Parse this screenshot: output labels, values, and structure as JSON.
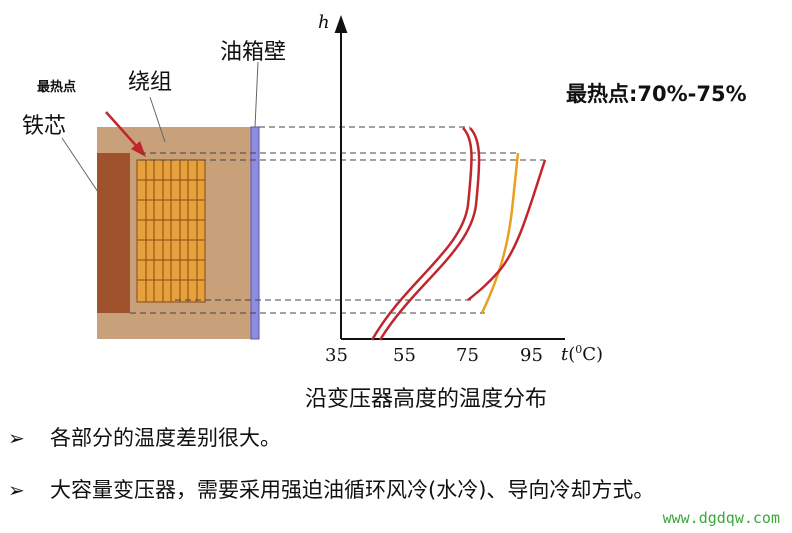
{
  "labels": {
    "hottest_small": "最热点",
    "winding": "绕组",
    "core": "铁芯",
    "tank_wall": "油箱壁",
    "hotspot_note": "最热点:70%-75%"
  },
  "chart_data": {
    "type": "line",
    "title": "",
    "xlabel_var": "t",
    "xlabel_unit": "0C",
    "ylabel": "h",
    "x_ticks": [
      "35",
      "55",
      "75",
      "95"
    ],
    "caption": "沿变压器高度的温度分布",
    "series_colors": {
      "winding_curve": "#c0272d",
      "oil_curve": "#e8a020"
    }
  },
  "bullets": [
    {
      "marker": "➢",
      "text": "各部分的温度差别很大。"
    },
    {
      "marker": "➢",
      "text": "大容量变压器，需要采用强迫油循环风冷(水冷)、导向冷却方式。"
    }
  ],
  "watermark": "www.dgdqw.com",
  "colors": {
    "tank_fill": "#c8a07a",
    "core_fill": "#a0522d",
    "winding_fill": "#e6a03c",
    "wall_fill": "#8c8ce0",
    "arrow": "#c0272d"
  }
}
